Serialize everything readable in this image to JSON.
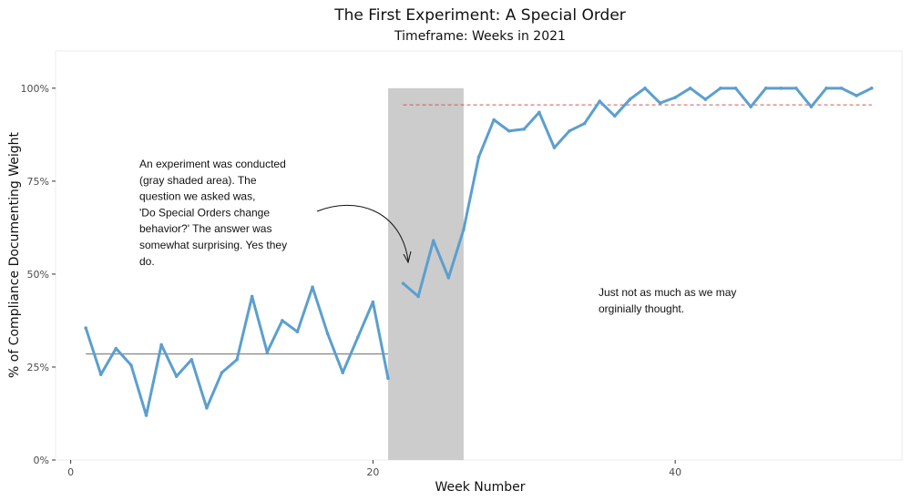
{
  "chart_data": {
    "type": "line",
    "title": "The First Experiment: A Special Order",
    "subtitle": "Timeframe: Weeks in 2021",
    "xlabel": "Week Number",
    "ylabel": "% of Compliance Documenting Weight",
    "xlim": [
      -1,
      55
    ],
    "ylim": [
      0,
      1.1
    ],
    "x_ticks": [
      0,
      20,
      40
    ],
    "y_ticks": [
      0,
      0.25,
      0.5,
      0.75,
      1.0
    ],
    "y_tick_labels": [
      "0%",
      "25%",
      "50%",
      "75%",
      "100%"
    ],
    "grid": false,
    "line_color": "#5b9fcf",
    "shaded_region": {
      "x_start": 21,
      "x_end": 26,
      "color": "#cccccc"
    },
    "series": [
      {
        "x": [
          1,
          2,
          3,
          4,
          5,
          6,
          7,
          8,
          9,
          10,
          11,
          12,
          13,
          14,
          15,
          16,
          17,
          18,
          19,
          20,
          21
        ],
        "values": [
          0.355,
          0.23,
          0.3,
          0.255,
          0.12,
          0.31,
          0.225,
          0.27,
          0.14,
          0.235,
          0.27,
          0.44,
          0.29,
          0.375,
          0.345,
          0.465,
          0.34,
          0.235,
          0.33,
          0.425,
          0.22
        ]
      },
      {
        "x": [
          22,
          23,
          24,
          25,
          26,
          27,
          28,
          29,
          30,
          31,
          32,
          33,
          34,
          35,
          36,
          37,
          38,
          39,
          40,
          41,
          42,
          43,
          44,
          45,
          46,
          47,
          48,
          49,
          50,
          51,
          52,
          53
        ],
        "values": [
          0.475,
          0.44,
          0.59,
          0.49,
          0.62,
          0.815,
          0.915,
          0.885,
          0.89,
          0.935,
          0.84,
          0.885,
          0.905,
          0.965,
          0.925,
          0.97,
          1.0,
          0.96,
          0.975,
          1.0,
          0.97,
          1.0,
          1.0,
          0.95,
          1.0,
          1.0,
          1.0,
          0.95,
          1.0,
          1.0,
          0.98,
          1.0
        ]
      }
    ],
    "reference_lines": [
      {
        "x_start": 1,
        "x_end": 21,
        "y": 0.285,
        "color": "#6e6e6e",
        "style": "solid"
      },
      {
        "x_start": 22,
        "x_end": 53,
        "y": 0.955,
        "color": "#d9534f",
        "style": "dashed"
      }
    ],
    "annotations": [
      {
        "lines": [
          "An experiment was conducted",
          "(gray shaded area). The",
          "question we asked was,",
          "'Do Special Orders change",
          "behavior?' The answer was",
          "somewhat surprising. Yes they",
          "do."
        ]
      },
      {
        "lines": [
          "Just not as much as we may",
          "orginially thought."
        ]
      }
    ]
  }
}
